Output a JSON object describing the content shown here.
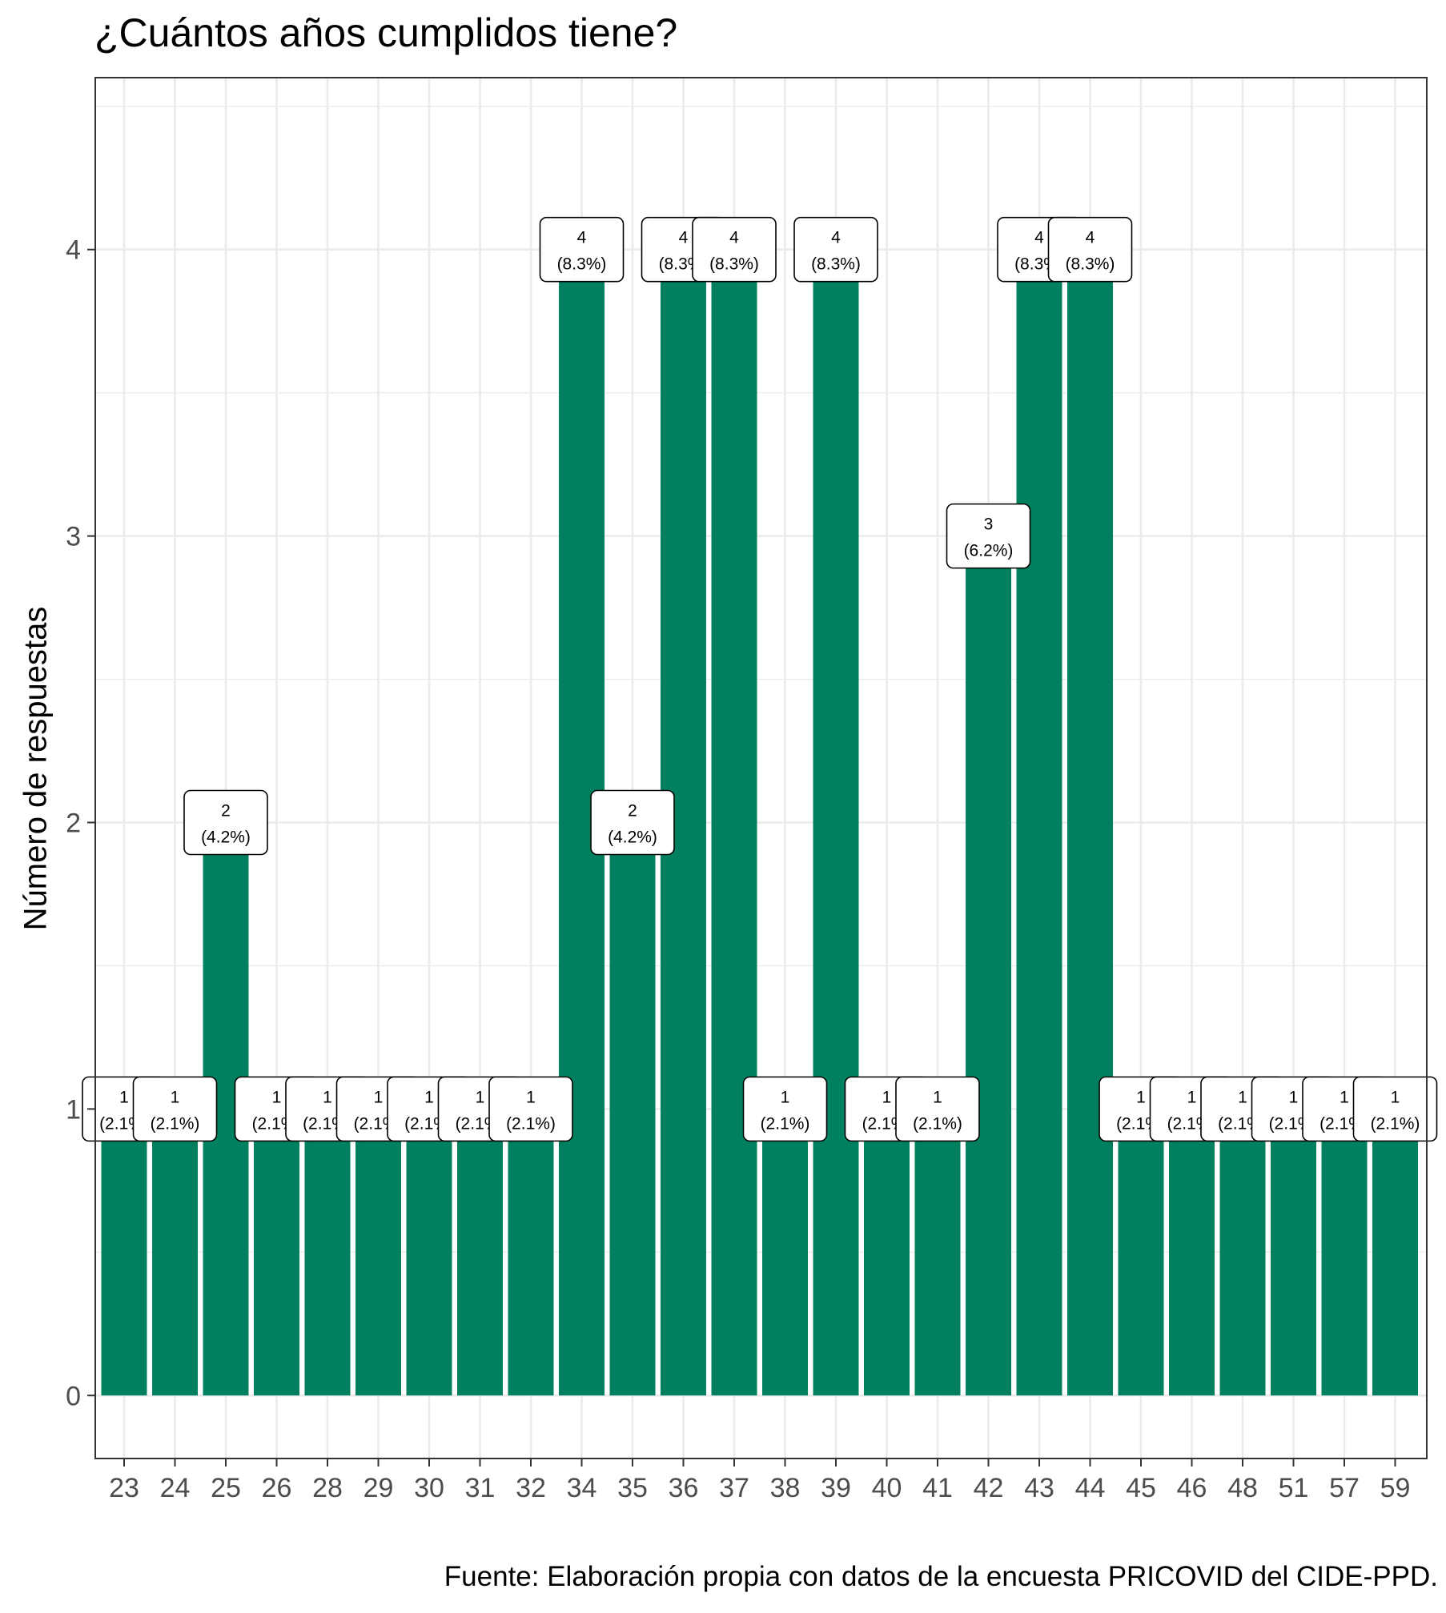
{
  "chart_data": {
    "type": "bar",
    "title": "¿Cuántos años cumplidos tiene?",
    "xlabel": "",
    "ylabel": "Número de respuestas",
    "caption": "Fuente: Elaboración propia con datos de la encuesta PRICOVID del CIDE-PPD.",
    "categories": [
      "23",
      "24",
      "25",
      "26",
      "28",
      "29",
      "30",
      "31",
      "32",
      "34",
      "35",
      "36",
      "37",
      "38",
      "39",
      "40",
      "41",
      "42",
      "43",
      "44",
      "45",
      "46",
      "48",
      "51",
      "57",
      "59"
    ],
    "values": [
      1,
      1,
      2,
      1,
      1,
      1,
      1,
      1,
      1,
      4,
      2,
      4,
      4,
      1,
      4,
      1,
      1,
      3,
      4,
      4,
      1,
      1,
      1,
      1,
      1,
      1
    ],
    "percent_labels": [
      "(2.1%)",
      "(2.1%)",
      "(4.2%)",
      "(2.1%)",
      "(2.1%)",
      "(2.1%)",
      "(2.1%)",
      "(2.1%)",
      "(2.1%)",
      "(8.3%)",
      "(4.2%)",
      "(8.3%)",
      "(8.3%)",
      "(2.1%)",
      "(8.3%)",
      "(2.1%)",
      "(2.1%)",
      "(6.2%)",
      "(8.3%)",
      "(8.3%)",
      "(2.1%)",
      "(2.1%)",
      "(2.1%)",
      "(2.1%)",
      "(2.1%)",
      "(2.1%)"
    ],
    "yticks": [
      0,
      1,
      2,
      3,
      4
    ],
    "ylim": [
      -0.22,
      4.6
    ],
    "grid": true,
    "bar_color": "#00805F"
  }
}
